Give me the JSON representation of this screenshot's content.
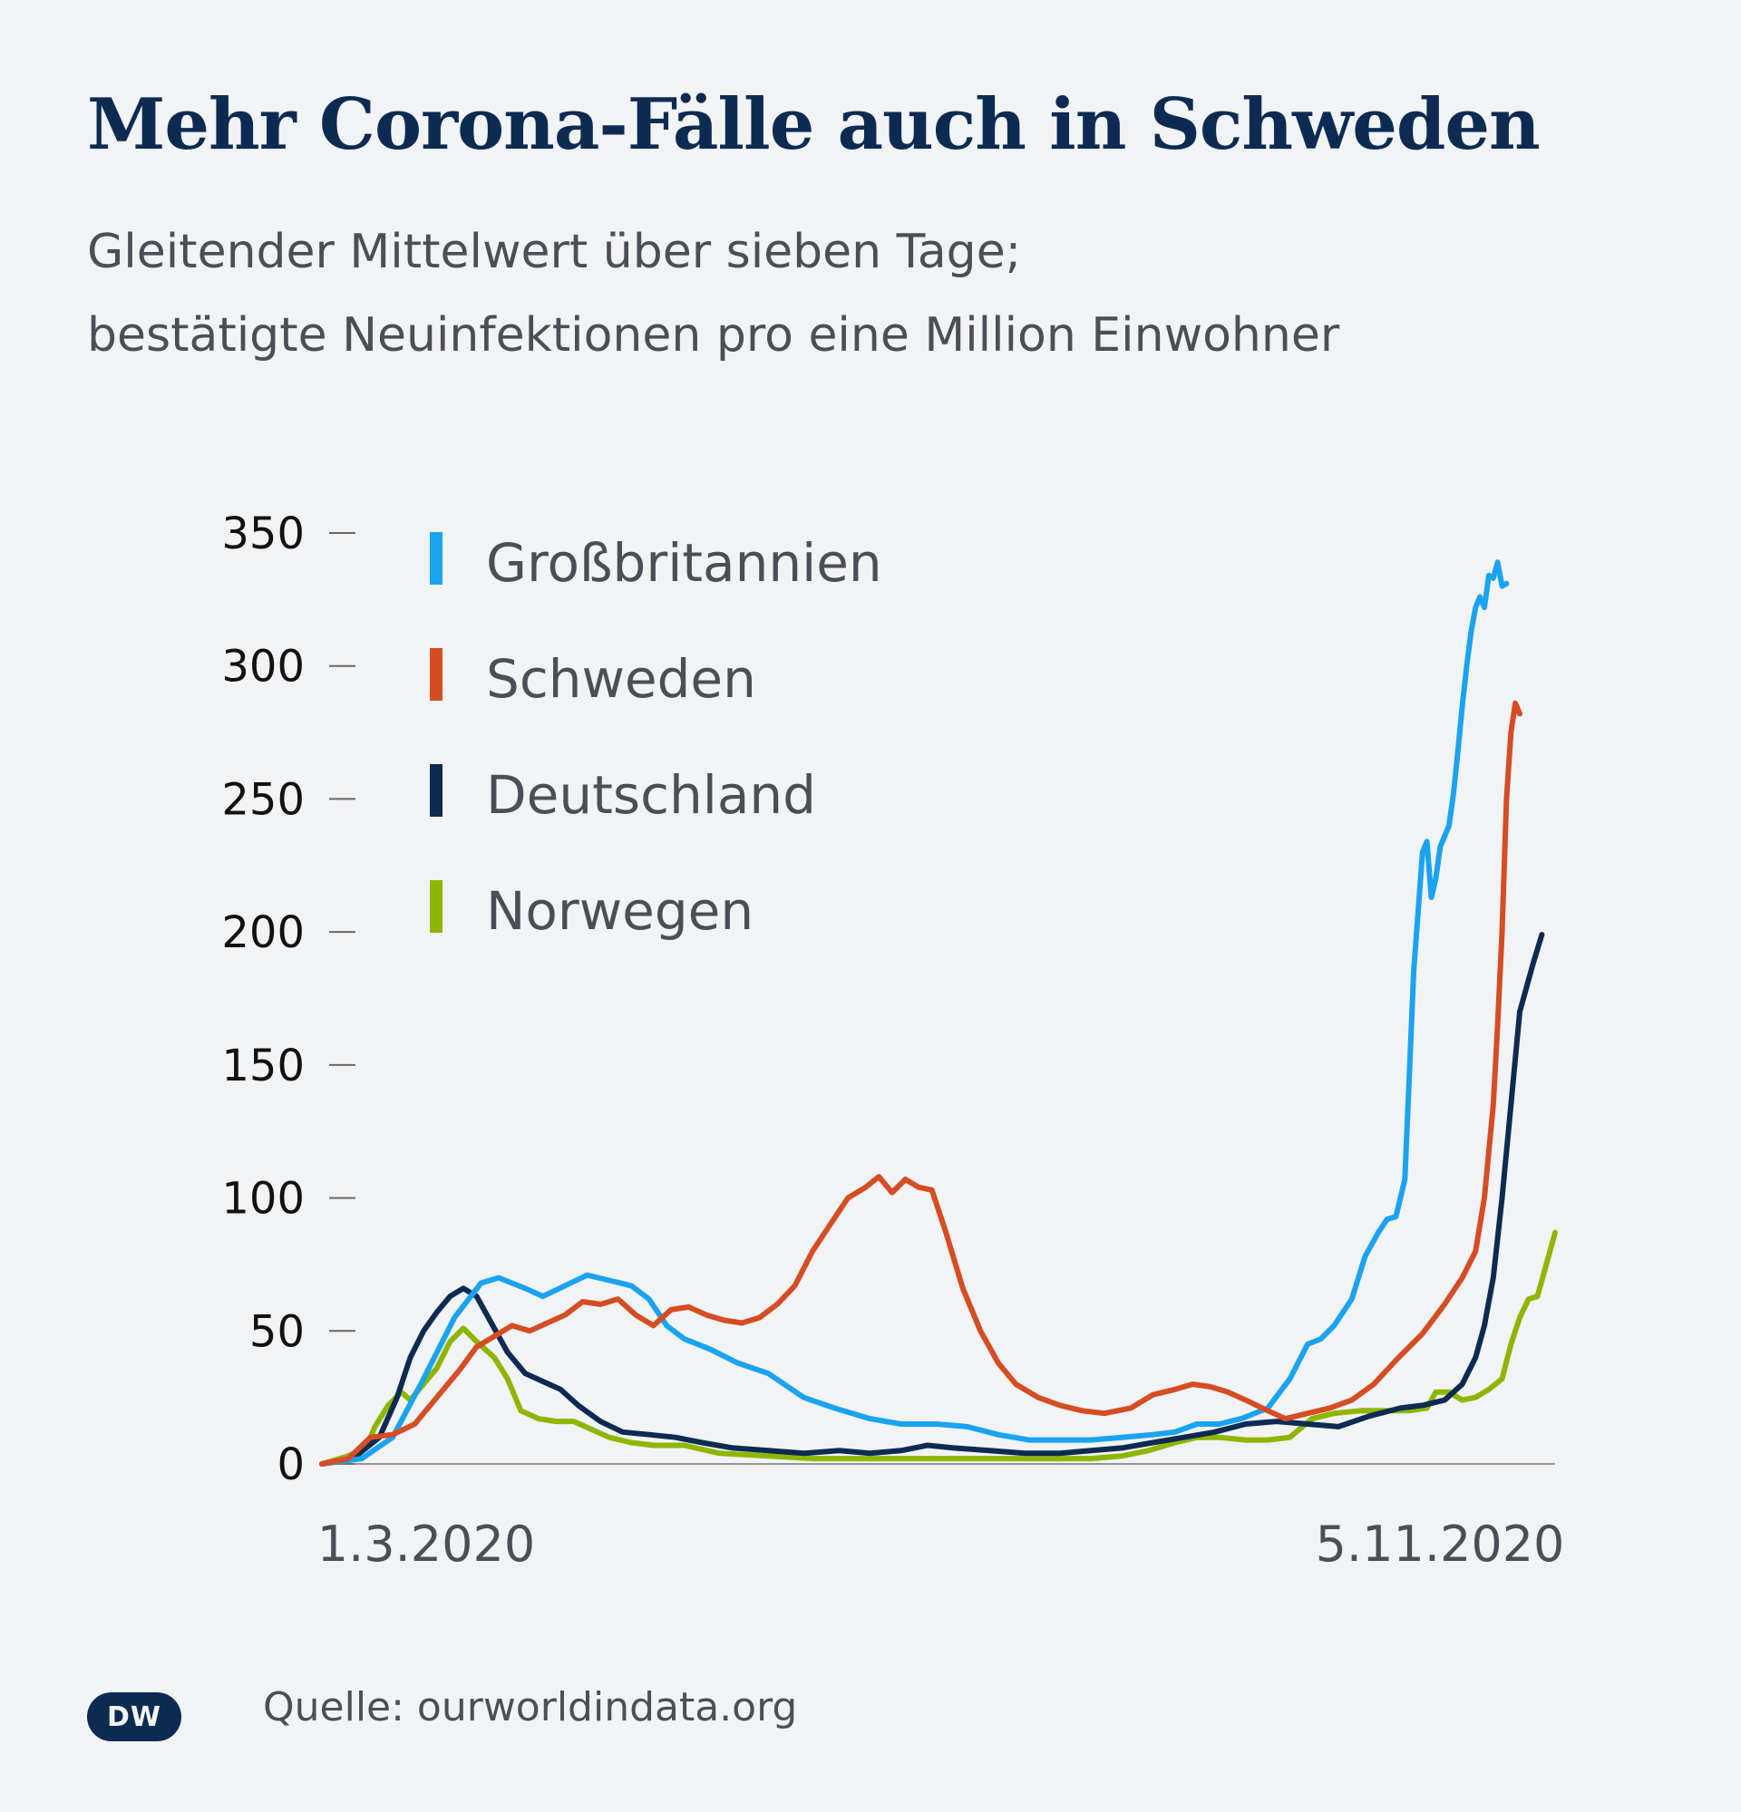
{
  "title": "Mehr Corona-Fälle auch in Schweden",
  "subtitle_line1": "Gleitender Mittelwert über sieben Tage;",
  "subtitle_line2": "bestätigte Neuinfektionen pro eine Million Einwohner",
  "source": "Quelle: ourworldindata.org",
  "logo_text": "DW",
  "chart_data": {
    "type": "line",
    "title": "Mehr Corona-Fälle auch in Schweden",
    "ylim": [
      0,
      350
    ],
    "yticks": [
      0,
      50,
      100,
      150,
      200,
      250,
      300,
      350
    ],
    "x_start_label": "1.3.2020",
    "x_end_label": "5.11.2020",
    "legend_position": "top-left",
    "grid": false,
    "series": [
      {
        "name": "Großbritannien",
        "color": "#1aa3f0",
        "points": [
          [
            "1.3.2020",
            0
          ],
          [
            "10.3.2020",
            2
          ],
          [
            "17.3.2020",
            10
          ],
          [
            "24.3.2020",
            32
          ],
          [
            "31.3.2020",
            55
          ],
          [
            "6.4.2020",
            68
          ],
          [
            "10.4.2020",
            70
          ],
          [
            "16.4.2020",
            66
          ],
          [
            "20.4.2020",
            63
          ],
          [
            "25.4.2020",
            67
          ],
          [
            "30.4.2020",
            71
          ],
          [
            "5.5.2020",
            69
          ],
          [
            "10.5.2020",
            67
          ],
          [
            "14.5.2020",
            62
          ],
          [
            "18.5.2020",
            52
          ],
          [
            "22.5.2020",
            47
          ],
          [
            "28.5.2020",
            43
          ],
          [
            "3.6.2020",
            38
          ],
          [
            "10.6.2020",
            34
          ],
          [
            "18.6.2020",
            25
          ],
          [
            "25.6.2020",
            21
          ],
          [
            "3.7.2020",
            17
          ],
          [
            "10.7.2020",
            15
          ],
          [
            "18.7.2020",
            15
          ],
          [
            "25.7.2020",
            14
          ],
          [
            "1.8.2020",
            11
          ],
          [
            "8.8.2020",
            9
          ],
          [
            "15.8.2020",
            9
          ],
          [
            "22.8.2020",
            9
          ],
          [
            "29.8.2020",
            10
          ],
          [
            "5.9.2020",
            11
          ],
          [
            "10.9.2020",
            12
          ],
          [
            "15.9.2020",
            15
          ],
          [
            "20.9.2020",
            15
          ],
          [
            "25.9.2020",
            17
          ],
          [
            "1.10.2020",
            21
          ],
          [
            "6.10.2020",
            32
          ],
          [
            "10.10.2020",
            45
          ],
          [
            "13.10.2020",
            47
          ],
          [
            "16.10.2020",
            52
          ],
          [
            "20.10.2020",
            62
          ],
          [
            "23.10.2020",
            78
          ],
          [
            "26.10.2020",
            87
          ],
          [
            "28.10.2020",
            92
          ],
          [
            "30.10.2020",
            93
          ],
          [
            "1.11.2020",
            107
          ],
          [
            "2.11.2020",
            145
          ],
          [
            "3.11.2020",
            185
          ],
          [
            "5.11.2020",
            230
          ],
          [
            "6.11.2020",
            234
          ],
          [
            "7.11.2020",
            213
          ],
          [
            "8.11.2020",
            220
          ],
          [
            "9.11.2020",
            232
          ],
          [
            "11.11.2020",
            240
          ],
          [
            "12.11.2020",
            252
          ],
          [
            "13.11.2020",
            268
          ],
          [
            "14.11.2020",
            285
          ],
          [
            "15.11.2020",
            300
          ],
          [
            "16.11.2020",
            313
          ],
          [
            "17.11.2020",
            322
          ],
          [
            "18.11.2020",
            326
          ],
          [
            "19.11.2020",
            322
          ],
          [
            "20.11.2020",
            334
          ],
          [
            "21.11.2020",
            333
          ],
          [
            "22.11.2020",
            339
          ],
          [
            "23.11.2020",
            330
          ],
          [
            "24.11.2020",
            331
          ]
        ]
      },
      {
        "name": "Schweden",
        "color": "#d64c23",
        "points": [
          [
            "1.3.2020",
            0
          ],
          [
            "7.3.2020",
            2
          ],
          [
            "12.3.2020",
            10
          ],
          [
            "17.3.2020",
            11
          ],
          [
            "22.3.2020",
            15
          ],
          [
            "27.3.2020",
            25
          ],
          [
            "1.4.2020",
            35
          ],
          [
            "5.4.2020",
            44
          ],
          [
            "9.4.2020",
            48
          ],
          [
            "13.4.2020",
            52
          ],
          [
            "17.4.2020",
            50
          ],
          [
            "21.4.2020",
            53
          ],
          [
            "25.4.2020",
            56
          ],
          [
            "29.4.2020",
            61
          ],
          [
            "3.5.2020",
            60
          ],
          [
            "7.5.2020",
            62
          ],
          [
            "11.5.2020",
            56
          ],
          [
            "15.5.2020",
            52
          ],
          [
            "19.5.2020",
            58
          ],
          [
            "23.5.2020",
            59
          ],
          [
            "27.5.2020",
            56
          ],
          [
            "31.5.2020",
            54
          ],
          [
            "4.6.2020",
            53
          ],
          [
            "8.6.2020",
            55
          ],
          [
            "12.6.2020",
            60
          ],
          [
            "16.6.2020",
            67
          ],
          [
            "20.6.2020",
            80
          ],
          [
            "24.6.2020",
            90
          ],
          [
            "28.6.2020",
            100
          ],
          [
            "2.7.2020",
            104
          ],
          [
            "5.7.2020",
            108
          ],
          [
            "8.7.2020",
            102
          ],
          [
            "11.7.2020",
            107
          ],
          [
            "14.7.2020",
            104
          ],
          [
            "17.7.2020",
            103
          ],
          [
            "20.7.2020",
            88
          ],
          [
            "24.7.2020",
            66
          ],
          [
            "28.7.2020",
            50
          ],
          [
            "1.8.2020",
            38
          ],
          [
            "5.8.2020",
            30
          ],
          [
            "10.8.2020",
            25
          ],
          [
            "15.8.2020",
            22
          ],
          [
            "20.8.2020",
            20
          ],
          [
            "25.8.2020",
            19
          ],
          [
            "31.8.2020",
            21
          ],
          [
            "5.9.2020",
            26
          ],
          [
            "10.9.2020",
            28
          ],
          [
            "14.9.2020",
            30
          ],
          [
            "18.9.2020",
            29
          ],
          [
            "22.9.2020",
            27
          ],
          [
            "26.9.2020",
            24
          ],
          [
            "1.10.2020",
            20
          ],
          [
            "5.10.2020",
            17
          ],
          [
            "10.10.2020",
            19
          ],
          [
            "15.10.2020",
            21
          ],
          [
            "20.10.2020",
            24
          ],
          [
            "25.10.2020",
            30
          ],
          [
            "30.10.2020",
            39
          ],
          [
            "5.11.2020",
            49
          ],
          [
            "10.11.2020",
            60
          ],
          [
            "14.11.2020",
            70
          ],
          [
            "17.11.2020",
            80
          ],
          [
            "19.11.2020",
            100
          ],
          [
            "21.11.2020",
            135
          ],
          [
            "22.11.2020",
            165
          ],
          [
            "23.11.2020",
            200
          ],
          [
            "24.11.2020",
            250
          ],
          [
            "25.11.2020",
            275
          ],
          [
            "26.11.2020",
            286
          ],
          [
            "27.11.2020",
            282
          ]
        ]
      },
      {
        "name": "Deutschland",
        "color": "#0d2b52",
        "points": [
          [
            "1.3.2020",
            0
          ],
          [
            "8.3.2020",
            2
          ],
          [
            "14.3.2020",
            10
          ],
          [
            "18.3.2020",
            25
          ],
          [
            "21.3.2020",
            40
          ],
          [
            "24.3.2020",
            50
          ],
          [
            "27.3.2020",
            57
          ],
          [
            "30.3.2020",
            63
          ],
          [
            "2.4.2020",
            66
          ],
          [
            "5.4.2020",
            63
          ],
          [
            "8.4.2020",
            54
          ],
          [
            "12.4.2020",
            42
          ],
          [
            "16.4.2020",
            34
          ],
          [
            "20.4.2020",
            31
          ],
          [
            "24.4.2020",
            28
          ],
          [
            "28.4.2020",
            22
          ],
          [
            "3.5.2020",
            16
          ],
          [
            "8.5.2020",
            12
          ],
          [
            "14.5.2020",
            11
          ],
          [
            "20.5.2020",
            10
          ],
          [
            "26.5.2020",
            8
          ],
          [
            "2.6.2020",
            6
          ],
          [
            "10.6.2020",
            5
          ],
          [
            "18.6.2020",
            4
          ],
          [
            "26.6.2020",
            5
          ],
          [
            "3.7.2020",
            4
          ],
          [
            "10.7.2020",
            5
          ],
          [
            "16.7.2020",
            7
          ],
          [
            "22.7.2020",
            6
          ],
          [
            "30.7.2020",
            5
          ],
          [
            "7.8.2020",
            4
          ],
          [
            "15.8.2020",
            4
          ],
          [
            "22.8.2020",
            5
          ],
          [
            "29.8.2020",
            6
          ],
          [
            "5.9.2020",
            8
          ],
          [
            "12.9.2020",
            10
          ],
          [
            "19.9.2020",
            12
          ],
          [
            "26.9.2020",
            15
          ],
          [
            "3.10.2020",
            16
          ],
          [
            "10.10.2020",
            15
          ],
          [
            "17.10.2020",
            14
          ],
          [
            "24.10.2020",
            18
          ],
          [
            "31.10.2020",
            21
          ],
          [
            "5.11.2020",
            22
          ],
          [
            "10.11.2020",
            24
          ],
          [
            "14.11.2020",
            30
          ],
          [
            "17.11.2020",
            40
          ],
          [
            "19.11.2020",
            52
          ],
          [
            "21.11.2020",
            70
          ],
          [
            "23.11.2020",
            100
          ],
          [
            "25.11.2020",
            135
          ],
          [
            "27.11.2020",
            170
          ],
          [
            "30.11.2020",
            188
          ],
          [
            "2.12.2020",
            199
          ]
        ]
      },
      {
        "name": "Norwegen",
        "color": "#8db600",
        "points": [
          [
            "1.3.2020",
            0
          ],
          [
            "7.3.2020",
            3
          ],
          [
            "11.3.2020",
            6
          ],
          [
            "13.3.2020",
            14
          ],
          [
            "16.3.2020",
            22
          ],
          [
            "19.3.2020",
            27
          ],
          [
            "21.3.2020",
            24
          ],
          [
            "24.3.2020",
            30
          ],
          [
            "27.3.2020",
            36
          ],
          [
            "30.3.2020",
            46
          ],
          [
            "2.4.2020",
            51
          ],
          [
            "5.4.2020",
            46
          ],
          [
            "9.4.2020",
            40
          ],
          [
            "12.4.2020",
            32
          ],
          [
            "15.4.2020",
            20
          ],
          [
            "19.4.2020",
            17
          ],
          [
            "23.4.2020",
            16
          ],
          [
            "27.4.2020",
            16
          ],
          [
            "1.5.2020",
            13
          ],
          [
            "5.5.2020",
            10
          ],
          [
            "10.5.2020",
            8
          ],
          [
            "15.5.2020",
            7
          ],
          [
            "22.5.2020",
            7
          ],
          [
            "30.5.2020",
            4
          ],
          [
            "10.6.2020",
            3
          ],
          [
            "20.6.2020",
            2
          ],
          [
            "1.7.2020",
            2
          ],
          [
            "10.7.2020",
            2
          ],
          [
            "20.7.2020",
            2
          ],
          [
            "30.7.2020",
            2
          ],
          [
            "8.8.2020",
            2
          ],
          [
            "15.8.2020",
            2
          ],
          [
            "22.8.2020",
            2
          ],
          [
            "29.8.2020",
            3
          ],
          [
            "4.9.2020",
            5
          ],
          [
            "10.9.2020",
            8
          ],
          [
            "15.9.2020",
            10
          ],
          [
            "20.9.2020",
            10
          ],
          [
            "26.9.2020",
            9
          ],
          [
            "1.10.2020",
            9
          ],
          [
            "6.10.2020",
            10
          ],
          [
            "11.10.2020",
            17
          ],
          [
            "16.10.2020",
            19
          ],
          [
            "22.10.2020",
            20
          ],
          [
            "28.10.2020",
            20
          ],
          [
            "2.11.2020",
            20
          ],
          [
            "6.11.2020",
            21
          ],
          [
            "8.11.2020",
            27
          ],
          [
            "11.11.2020",
            27
          ],
          [
            "14.11.2020",
            24
          ],
          [
            "17.11.2020",
            25
          ],
          [
            "20.11.2020",
            28
          ],
          [
            "23.11.2020",
            32
          ],
          [
            "25.11.2020",
            45
          ],
          [
            "27.11.2020",
            55
          ],
          [
            "29.11.2020",
            62
          ],
          [
            "1.12.2020",
            63
          ],
          [
            "3.12.2020",
            75
          ],
          [
            "5.12.2020",
            87
          ]
        ]
      }
    ]
  }
}
